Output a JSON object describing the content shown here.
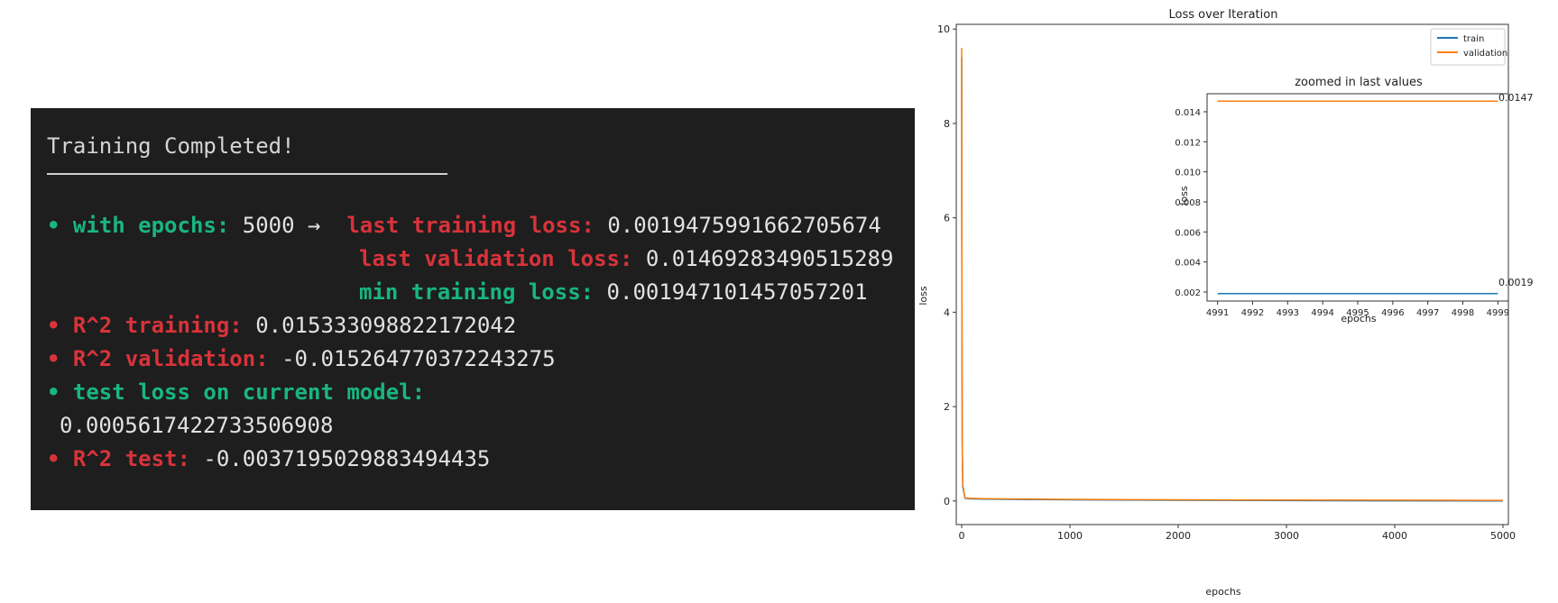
{
  "terminal": {
    "title": "Training Completed!",
    "lines": {
      "epochs_bullet": "• ",
      "epochs_label": "with epochs: ",
      "epochs_value": "5000",
      "arrow": " →  ",
      "last_train_label": "last training loss: ",
      "last_train_value": "0.0019475991662705674",
      "last_val_label": "last validation loss: ",
      "last_val_value": "0.01469283490515289",
      "min_train_label": "min training loss: ",
      "min_train_value": "0.001947101457057201",
      "r2_train_bullet": "• ",
      "r2_train_label": "R^2 training: ",
      "r2_train_value": "0.015333098822172042",
      "r2_val_bullet": "• ",
      "r2_val_label": "R^2 validation: ",
      "r2_val_value": "-0.015264770372243275",
      "test_loss_bullet": "• ",
      "test_loss_label": "test loss on current model:",
      "test_loss_value": "0.0005617422733506908",
      "r2_test_bullet": "• ",
      "r2_test_label": "R^2 test: ",
      "r2_test_value": "-0.0037195029883494435"
    },
    "colors": {
      "background": "#1e1e1e",
      "green": "#19b67f",
      "red": "#d8333a",
      "text": "#e2e2e2"
    }
  },
  "chart_data": [
    {
      "type": "line",
      "title": "Loss over Iteration",
      "xlabel": "epochs",
      "ylabel": "loss",
      "xlim": [
        -50,
        5050
      ],
      "ylim": [
        -0.5,
        10.1
      ],
      "xticks": [
        0,
        1000,
        2000,
        3000,
        4000,
        5000
      ],
      "yticks": [
        0,
        2,
        4,
        6,
        8,
        10
      ],
      "legend": {
        "placement": "top-right"
      },
      "grid": false,
      "series": [
        {
          "name": "train",
          "color": "#1f77b4",
          "x": [
            0,
            1,
            5,
            10,
            30,
            60,
            100,
            200,
            400,
            700,
            1000,
            2000,
            3000,
            4000,
            5000
          ],
          "y": [
            9.4,
            6.0,
            1.2,
            0.3,
            0.06,
            0.05,
            0.045,
            0.04,
            0.035,
            0.03,
            0.025,
            0.015,
            0.008,
            0.004,
            0.0019
          ]
        },
        {
          "name": "validation",
          "color": "#ff7f0e",
          "x": [
            0,
            1,
            5,
            10,
            30,
            60,
            100,
            200,
            400,
            700,
            1000,
            2000,
            3000,
            4000,
            5000
          ],
          "y": [
            9.6,
            6.2,
            1.3,
            0.35,
            0.07,
            0.06,
            0.055,
            0.05,
            0.045,
            0.04,
            0.035,
            0.025,
            0.02,
            0.017,
            0.0147
          ]
        }
      ]
    },
    {
      "type": "line",
      "title": "zoomed in last values",
      "xlabel": "epochs",
      "ylabel": "loss",
      "xlim": [
        4990.7,
        4999.3
      ],
      "ylim": [
        0.0014,
        0.0152
      ],
      "xticks": [
        4991,
        4992,
        4993,
        4994,
        4995,
        4996,
        4997,
        4998,
        4999
      ],
      "yticks": [
        0.002,
        0.004,
        0.006,
        0.008,
        0.01,
        0.012,
        0.014
      ],
      "ytick_labels": [
        "0.002",
        "0.004",
        "0.006",
        "0.008",
        "0.010",
        "0.012",
        "0.014"
      ],
      "annotations": [
        "0.0147",
        "0.0019"
      ],
      "series": [
        {
          "name": "train",
          "color": "#1f77b4",
          "x": [
            4991,
            4992,
            4993,
            4994,
            4995,
            4996,
            4997,
            4998,
            4999
          ],
          "y": [
            0.0019,
            0.0019,
            0.0019,
            0.0019,
            0.0019,
            0.0019,
            0.0019,
            0.0019,
            0.0019
          ]
        },
        {
          "name": "validation",
          "color": "#ff7f0e",
          "x": [
            4991,
            4992,
            4993,
            4994,
            4995,
            4996,
            4997,
            4998,
            4999
          ],
          "y": [
            0.0147,
            0.0147,
            0.0147,
            0.0147,
            0.0147,
            0.0147,
            0.0147,
            0.0147,
            0.0147
          ]
        }
      ]
    }
  ]
}
